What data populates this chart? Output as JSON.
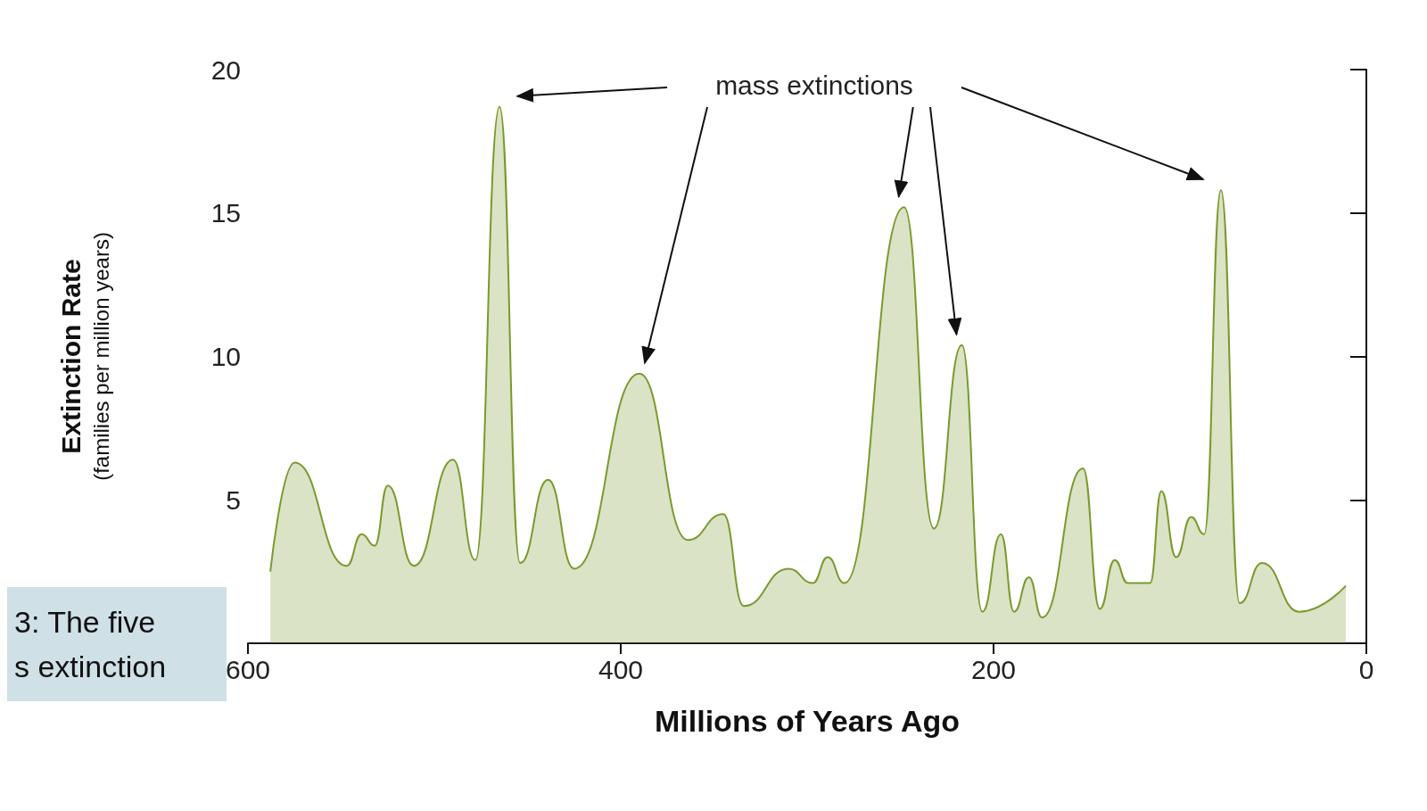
{
  "chart_data": {
    "type": "area",
    "xlabel": "Millions of Years Ago",
    "ylabel": "Extinction Rate\n(families per million years)",
    "x": [
      588,
      575,
      547,
      539,
      532,
      525,
      511,
      490,
      478,
      465,
      454,
      439,
      425,
      390,
      364,
      345,
      334,
      310,
      297,
      289,
      280,
      248,
      232,
      217,
      206,
      196,
      189,
      181,
      174,
      152,
      143,
      135,
      128,
      116,
      110,
      102,
      94,
      87,
      78,
      68,
      56,
      36,
      11
    ],
    "series": [
      {
        "color": "#7a9a2e",
        "values": [
          2.5,
          6.3,
          2.7,
          3.8,
          3.4,
          5.5,
          2.7,
          6.4,
          2.9,
          18.7,
          2.8,
          5.7,
          2.6,
          9.4,
          3.6,
          4.5,
          1.3,
          2.6,
          2.1,
          3.0,
          2.1,
          15.2,
          4.0,
          10.4,
          1.1,
          3.8,
          1.1,
          2.3,
          0.9,
          6.1,
          1.2,
          2.9,
          2.1,
          2.1,
          5.3,
          3.0,
          4.4,
          3.8,
          15.8,
          1.4,
          2.8,
          1.1,
          2.0
        ]
      }
    ],
    "xlim": [
      600,
      0
    ],
    "xticks": [
      600,
      400,
      200,
      0
    ],
    "ylim": [
      0,
      20
    ],
    "yticks": [
      {
        "value": 0,
        "label": null
      },
      5,
      10,
      15,
      20
    ],
    "grid": false,
    "annotations": [
      "mass extinctions",
      "3: The five\ns extinction"
    ]
  }
}
